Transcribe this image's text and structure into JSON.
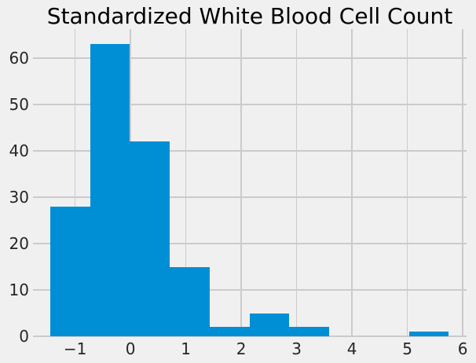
{
  "chart_data": {
    "type": "bar",
    "subtype": "histogram",
    "title": "Standardized White Blood Cell Count",
    "xlabel": "",
    "ylabel": "",
    "bin_edges": [
      -1.45,
      -0.73,
      -0.01,
      0.71,
      1.43,
      2.15,
      2.87,
      3.59,
      4.31,
      5.03,
      5.75
    ],
    "counts": [
      28,
      63,
      42,
      15,
      2,
      5,
      2,
      0,
      0,
      1
    ],
    "total_n": 158,
    "xlim": [
      -1.76,
      6.07
    ],
    "ylim": [
      0,
      66.3
    ],
    "xticks": {
      "values": [
        -1,
        0,
        1,
        2,
        3,
        4,
        5,
        6
      ],
      "labels": [
        "−1",
        "0",
        "1",
        "2",
        "3",
        "4",
        "5",
        "6"
      ]
    },
    "yticks": {
      "values": [
        0,
        10,
        20,
        30,
        40,
        50,
        60
      ],
      "labels": [
        "0",
        "10",
        "20",
        "30",
        "40",
        "50",
        "60"
      ]
    },
    "grid": true,
    "legend": false,
    "style": {
      "bar_color": "#008fd5",
      "background_color": "#f0f0f0",
      "grid_color": "#cbcbcb",
      "tick_text_color": "#262626",
      "title_color": "#000000"
    }
  }
}
